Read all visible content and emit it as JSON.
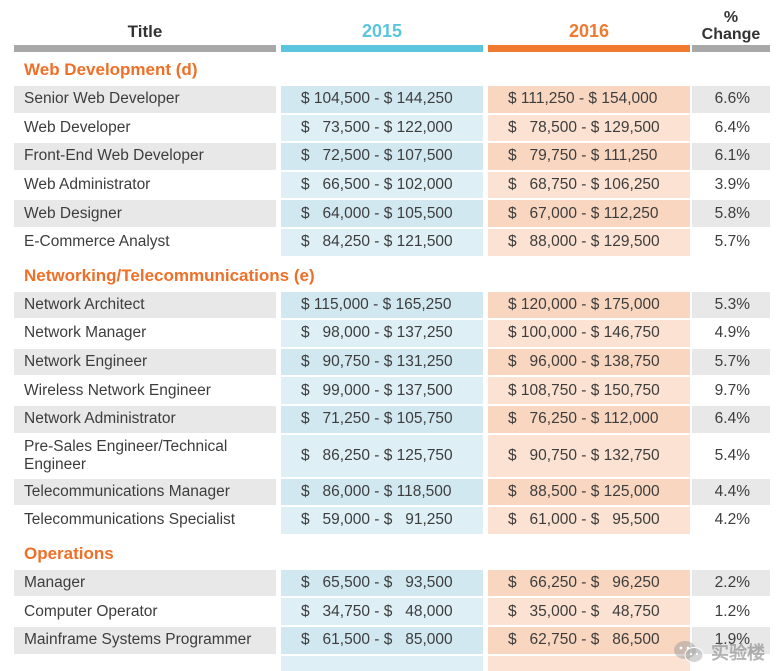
{
  "header": {
    "title": "Title",
    "year1": "2015",
    "year2": "2016",
    "change_line1": "%",
    "change_line2": "Change"
  },
  "sections": [
    {
      "name": "Web Development (d)",
      "rows": [
        {
          "title": "Senior Web Developer",
          "y2015": "$ 104,500 - $ 144,250",
          "y2016": "$ 111,250 - $ 154,000",
          "change": "6.6%"
        },
        {
          "title": "Web Developer",
          "y2015": "$   73,500 - $ 122,000",
          "y2016": "$   78,500 - $ 129,500",
          "change": "6.4%"
        },
        {
          "title": "Front-End Web Developer",
          "y2015": "$   72,500 - $ 107,500",
          "y2016": "$   79,750 - $ 111,250",
          "change": "6.1%"
        },
        {
          "title": "Web Administrator",
          "y2015": "$   66,500 - $ 102,000",
          "y2016": "$   68,750 - $ 106,250",
          "change": "3.9%"
        },
        {
          "title": "Web Designer",
          "y2015": "$   64,000 - $ 105,500",
          "y2016": "$   67,000 - $ 112,250",
          "change": "5.8%"
        },
        {
          "title": "E-Commerce Analyst",
          "y2015": "$   84,250 - $ 121,500",
          "y2016": "$   88,000 - $ 129,500",
          "change": "5.7%"
        }
      ]
    },
    {
      "name": "Networking/Telecommunications (e)",
      "rows": [
        {
          "title": "Network Architect",
          "y2015": "$ 115,000 - $ 165,250",
          "y2016": "$ 120,000 - $ 175,000",
          "change": "5.3%"
        },
        {
          "title": "Network Manager",
          "y2015": "$   98,000 - $ 137,250",
          "y2016": "$ 100,000 - $ 146,750",
          "change": "4.9%"
        },
        {
          "title": "Network Engineer",
          "y2015": "$   90,750 - $ 131,250",
          "y2016": "$   96,000 - $ 138,750",
          "change": "5.7%"
        },
        {
          "title": "Wireless Network Engineer",
          "y2015": "$   99,000 - $ 137,500",
          "y2016": "$ 108,750 - $ 150,750",
          "change": "9.7%"
        },
        {
          "title": "Network Administrator",
          "y2015": "$   71,250 - $ 105,750",
          "y2016": "$   76,250 - $ 112,000",
          "change": "6.4%"
        },
        {
          "title": "Pre-Sales Engineer/Technical Engineer",
          "y2015": "$   86,250 - $ 125,750",
          "y2016": "$   90,750 - $ 132,750",
          "change": "5.4%",
          "tall": true
        },
        {
          "title": "Telecommunications Manager",
          "y2015": "$   86,000 - $ 118,500",
          "y2016": "$   88,500 - $ 125,000",
          "change": "4.4%"
        },
        {
          "title": "Telecommunications Specialist",
          "y2015": "$   59,000 - $   91,250",
          "y2016": "$   61,000 - $   95,500",
          "change": "4.2%"
        }
      ]
    },
    {
      "name": "Operations",
      "rows": [
        {
          "title": "Manager",
          "y2015": "$   65,500 - $   93,500",
          "y2016": "$   66,250 - $   96,250",
          "change": "2.2%"
        },
        {
          "title": "Computer Operator",
          "y2015": "$   34,750 - $   48,000",
          "y2016": "$   35,000 - $   48,750",
          "change": "1.2%"
        },
        {
          "title": "Mainframe Systems Programmer",
          "y2015": "$   61,500 - $   85,000",
          "y2016": "$   62,750 - $   86,500",
          "change": "1.9%"
        }
      ]
    }
  ],
  "watermark": {
    "text": "实验楼",
    "icon": "wechat-icon"
  }
}
